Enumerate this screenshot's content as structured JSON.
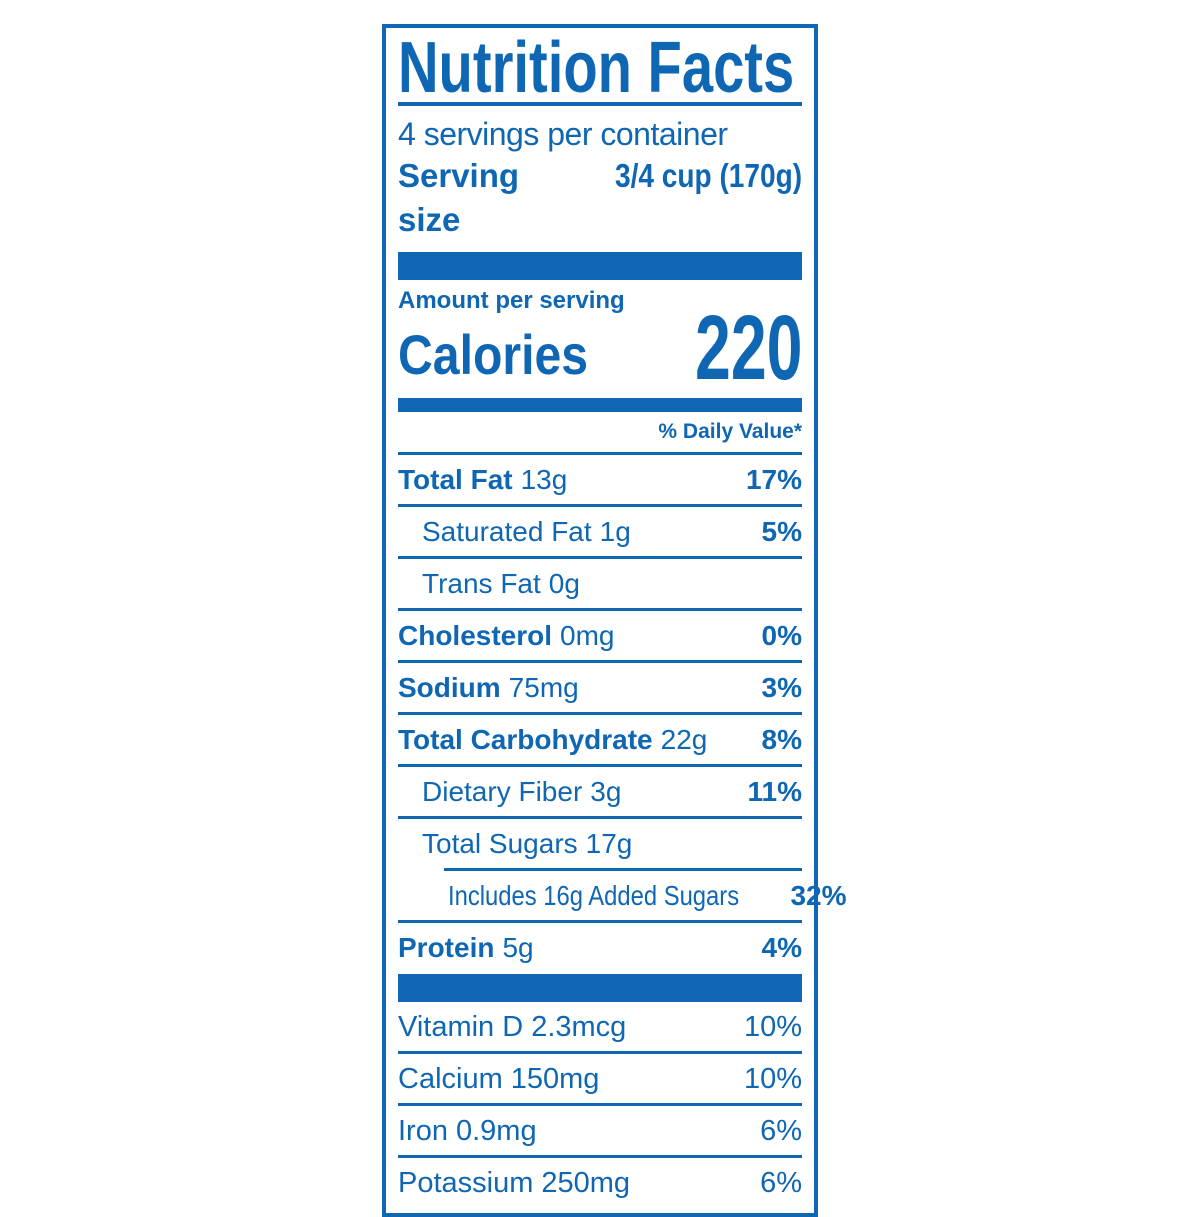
{
  "label": {
    "title": "Nutrition Facts",
    "servings_per_container": "4 servings per container",
    "serving_size": {
      "label": "Serving size",
      "value": "3/4 cup (170g)"
    },
    "amount_per_serving": "Amount per serving",
    "calories": {
      "label": "Calories",
      "value": "220"
    },
    "daily_value_header": "% Daily Value*",
    "nutrients": [
      {
        "name": "Total Fat",
        "amount": "13g",
        "dv": "17%"
      },
      {
        "name": "Saturated Fat",
        "amount": "1g",
        "dv": "5%"
      },
      {
        "name": "Trans Fat",
        "amount": "0g",
        "dv": ""
      },
      {
        "name": "Cholesterol",
        "amount": "0mg",
        "dv": "0%"
      },
      {
        "name": "Sodium",
        "amount": "75mg",
        "dv": "3%"
      },
      {
        "name": "Total Carbohydrate",
        "amount": "22g",
        "dv": "8%"
      },
      {
        "name": "Dietary Fiber",
        "amount": "3g",
        "dv": "11%"
      },
      {
        "name": "Total Sugars",
        "amount": "17g",
        "dv": ""
      },
      {
        "name": "Includes 16g Added Sugars",
        "amount": "",
        "dv": "32%"
      },
      {
        "name": "Protein",
        "amount": "5g",
        "dv": "4%"
      }
    ],
    "vitamins": [
      {
        "name": "Vitamin D",
        "amount": "2.3mcg",
        "dv": "10%"
      },
      {
        "name": "Calcium",
        "amount": "150mg",
        "dv": "10%"
      },
      {
        "name": "Iron",
        "amount": "0.9mg",
        "dv": "6%"
      },
      {
        "name": "Potassium",
        "amount": "250mg",
        "dv": "6%"
      }
    ],
    "colors": {
      "accent_blue": "#0f67b3",
      "background": "#ffffff"
    }
  }
}
